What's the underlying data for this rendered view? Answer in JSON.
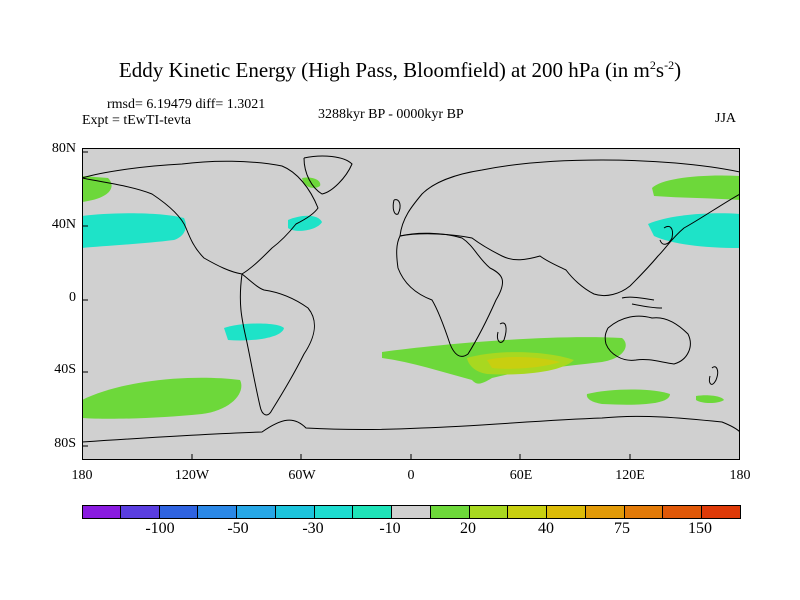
{
  "title": {
    "main": "Eddy Kinetic Energy (High Pass, Bloomfield) at 200 hPa (in m",
    "sup1": "2",
    "mid": "s",
    "sup2": "-2",
    "end": ")"
  },
  "stats": "rmsd= 6.19479  diff= 1.3021",
  "experiment": "Expt = tEwTI-tevta",
  "period": "3288kyr BP - 0000kyr BP",
  "season": "JJA",
  "lat_labels": [
    "80N",
    "40N",
    "0",
    "40S",
    "80S"
  ],
  "lon_labels": [
    "180",
    "120W",
    "60W",
    "0",
    "60E",
    "120E",
    "180"
  ],
  "colorbar": {
    "colors": [
      "#8a1be0",
      "#5a3ee0",
      "#2f63e0",
      "#2b88e6",
      "#27a7e6",
      "#1cc4dc",
      "#1ddcd0",
      "#1ee3b8",
      "#d0d0d0",
      "#6dd83a",
      "#a8d820",
      "#c8cf10",
      "#dcbb08",
      "#e29a08",
      "#e27a08",
      "#e05808",
      "#de3a08"
    ],
    "labels": [
      "-100",
      "-50",
      "-30",
      "-10",
      "20",
      "40",
      "75",
      "150"
    ]
  },
  "colors": {
    "land_ocean": "#d0d0d0",
    "cyan": "#1ee3c8",
    "green": "#6dd83a",
    "yellowgreen": "#a8d820",
    "yellow": "#c8cf10"
  }
}
